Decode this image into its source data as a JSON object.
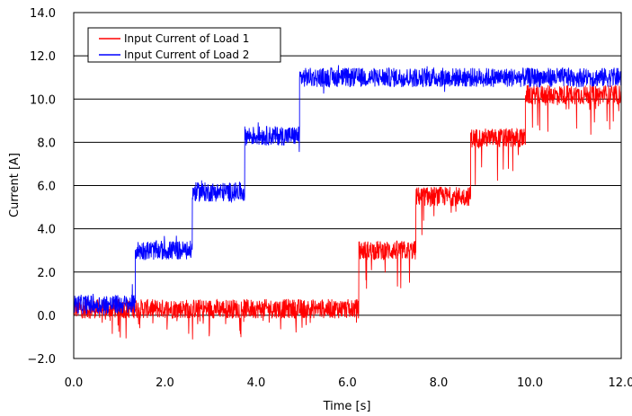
{
  "chart_data": {
    "type": "line",
    "xlabel": "Time [s]",
    "ylabel": "Current [A]",
    "xlim": [
      0,
      12
    ],
    "ylim": [
      -2,
      14
    ],
    "x_ticks": [
      "0.0",
      "2.0",
      "4.0",
      "6.0",
      "8.0",
      "10.0",
      "12.0"
    ],
    "y_ticks": [
      "−2.0",
      "0.0",
      "2.0",
      "4.0",
      "6.0",
      "8.0",
      "10.0",
      "12.0",
      "14.0"
    ],
    "grid": "horizontal",
    "legend_position": "top-left",
    "series": [
      {
        "name": "Input Current of Load 1",
        "color": "#ff0000",
        "segments": [
          {
            "start": 0.0,
            "end": 6.25,
            "mean": 0.3
          },
          {
            "start": 6.25,
            "end": 7.5,
            "mean": 3.0
          },
          {
            "start": 7.5,
            "end": 8.7,
            "mean": 5.5
          },
          {
            "start": 8.7,
            "end": 9.9,
            "mean": 8.2
          },
          {
            "start": 9.9,
            "end": 12.0,
            "mean": 10.2
          }
        ]
      },
      {
        "name": "Input Current of Load 2",
        "color": "#0000ff",
        "segments": [
          {
            "start": 0.0,
            "end": 1.35,
            "mean": 0.5
          },
          {
            "start": 1.35,
            "end": 2.6,
            "mean": 3.0
          },
          {
            "start": 2.6,
            "end": 3.75,
            "mean": 5.7
          },
          {
            "start": 3.75,
            "end": 4.95,
            "mean": 8.3
          },
          {
            "start": 4.95,
            "end": 12.0,
            "mean": 11.0
          }
        ]
      }
    ]
  }
}
